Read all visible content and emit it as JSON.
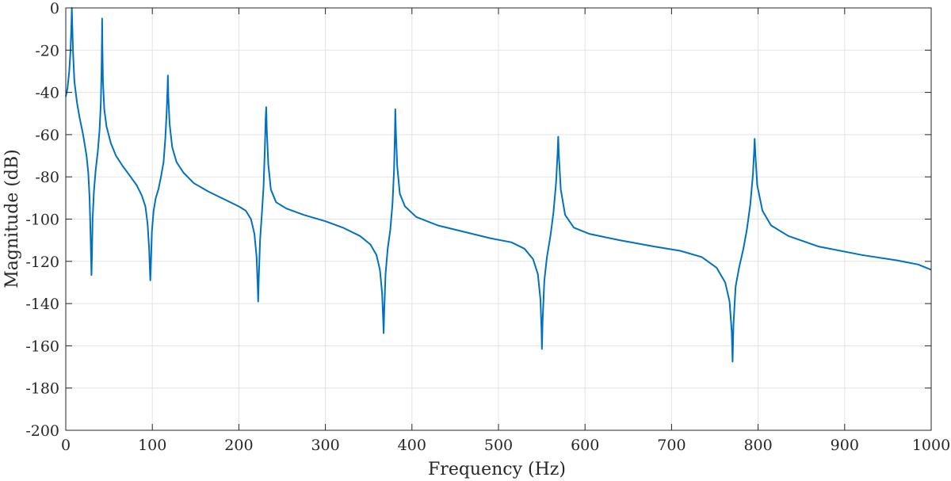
{
  "chart_data": {
    "type": "line",
    "title": "",
    "xlabel": "Frequency (Hz)",
    "ylabel": "Magnitude (dB)",
    "xlim": [
      0,
      1000
    ],
    "ylim": [
      -200,
      0
    ],
    "xticks": [
      0,
      100,
      200,
      300,
      400,
      500,
      600,
      700,
      800,
      900,
      1000
    ],
    "yticks": [
      0,
      -20,
      -40,
      -60,
      -80,
      -100,
      -120,
      -140,
      -160,
      -180,
      -200
    ],
    "xtick_labels": [
      "0",
      "100",
      "200",
      "300",
      "400",
      "500",
      "600",
      "700",
      "800",
      "900",
      "1000"
    ],
    "ytick_labels": [
      "0",
      "-20",
      "-40",
      "-60",
      "-80",
      "-100",
      "-120",
      "-140",
      "-160",
      "-180",
      "-200"
    ],
    "grid": true,
    "series": [
      {
        "name": "Magnitude",
        "color": "#0072BD",
        "points": [
          [
            0,
            -42
          ],
          [
            2,
            -38
          ],
          [
            4,
            -30
          ],
          [
            5.5,
            -20
          ],
          [
            6.5,
            -8
          ],
          [
            7,
            0
          ],
          [
            7.5,
            -8
          ],
          [
            8.5,
            -22
          ],
          [
            10,
            -35
          ],
          [
            13,
            -45
          ],
          [
            16,
            -52
          ],
          [
            20,
            -60
          ],
          [
            24,
            -70
          ],
          [
            26,
            -78
          ],
          [
            27.5,
            -90
          ],
          [
            28.5,
            -105
          ],
          [
            29.2,
            -118
          ],
          [
            29.7,
            -126.5
          ],
          [
            30.2,
            -118
          ],
          [
            31,
            -100
          ],
          [
            32.5,
            -87
          ],
          [
            34.5,
            -77
          ],
          [
            37,
            -68
          ],
          [
            39,
            -58
          ],
          [
            40.5,
            -45
          ],
          [
            41.3,
            -30
          ],
          [
            41.8,
            -15
          ],
          [
            42,
            -5
          ],
          [
            42.3,
            -18
          ],
          [
            43,
            -35
          ],
          [
            44.5,
            -48
          ],
          [
            47,
            -56
          ],
          [
            52,
            -64
          ],
          [
            58,
            -70
          ],
          [
            66,
            -75
          ],
          [
            75,
            -80
          ],
          [
            82,
            -84
          ],
          [
            88,
            -89
          ],
          [
            92,
            -94
          ],
          [
            94.5,
            -102
          ],
          [
            96.3,
            -114
          ],
          [
            97.2,
            -124
          ],
          [
            97.7,
            -129
          ],
          [
            98.3,
            -122
          ],
          [
            99.5,
            -106
          ],
          [
            101.5,
            -96
          ],
          [
            104,
            -90
          ],
          [
            107,
            -86
          ],
          [
            110,
            -80
          ],
          [
            113,
            -73
          ],
          [
            115,
            -62
          ],
          [
            116.5,
            -50
          ],
          [
            117.6,
            -38
          ],
          [
            118,
            -32
          ],
          [
            118.5,
            -42
          ],
          [
            120,
            -55
          ],
          [
            123,
            -66
          ],
          [
            128,
            -73
          ],
          [
            136,
            -78
          ],
          [
            148,
            -83
          ],
          [
            165,
            -87
          ],
          [
            185,
            -91
          ],
          [
            200,
            -94
          ],
          [
            208,
            -96
          ],
          [
            214,
            -100
          ],
          [
            218,
            -107
          ],
          [
            220.5,
            -118
          ],
          [
            221.8,
            -132
          ],
          [
            222.3,
            -139
          ],
          [
            223,
            -128
          ],
          [
            224.5,
            -110
          ],
          [
            226.5,
            -98
          ],
          [
            228.5,
            -85
          ],
          [
            230,
            -67
          ],
          [
            231,
            -52
          ],
          [
            231.6,
            -47
          ],
          [
            232.3,
            -58
          ],
          [
            234,
            -74
          ],
          [
            237,
            -86
          ],
          [
            243,
            -92
          ],
          [
            255,
            -95
          ],
          [
            275,
            -98
          ],
          [
            300,
            -101
          ],
          [
            320,
            -104
          ],
          [
            340,
            -108
          ],
          [
            352,
            -112
          ],
          [
            359,
            -117
          ],
          [
            363,
            -124
          ],
          [
            365.5,
            -135
          ],
          [
            366.8,
            -148
          ],
          [
            367.3,
            -154
          ],
          [
            368,
            -143
          ],
          [
            369.5,
            -126
          ],
          [
            372,
            -114
          ],
          [
            375,
            -105
          ],
          [
            377.5,
            -93
          ],
          [
            379.3,
            -77
          ],
          [
            380.3,
            -60
          ],
          [
            380.8,
            -48
          ],
          [
            381.4,
            -58
          ],
          [
            383,
            -75
          ],
          [
            386,
            -88
          ],
          [
            392,
            -94
          ],
          [
            405,
            -99
          ],
          [
            430,
            -103
          ],
          [
            460,
            -106
          ],
          [
            490,
            -109
          ],
          [
            515,
            -111
          ],
          [
            530,
            -114
          ],
          [
            540,
            -119
          ],
          [
            545.5,
            -126
          ],
          [
            548.5,
            -138
          ],
          [
            549.7,
            -152
          ],
          [
            550.2,
            -161.5
          ],
          [
            551,
            -148
          ],
          [
            553,
            -129
          ],
          [
            556,
            -118
          ],
          [
            560,
            -108
          ],
          [
            563.5,
            -97
          ],
          [
            566.5,
            -83
          ],
          [
            568.3,
            -69
          ],
          [
            569,
            -61
          ],
          [
            569.8,
            -70
          ],
          [
            572,
            -86
          ],
          [
            577,
            -98
          ],
          [
            587,
            -104
          ],
          [
            605,
            -107
          ],
          [
            640,
            -110
          ],
          [
            680,
            -113
          ],
          [
            710,
            -115
          ],
          [
            735,
            -118
          ],
          [
            752,
            -123
          ],
          [
            762,
            -130
          ],
          [
            767,
            -139
          ],
          [
            769.5,
            -153
          ],
          [
            770.5,
            -167.5
          ],
          [
            771.5,
            -150
          ],
          [
            774,
            -132
          ],
          [
            778,
            -123
          ],
          [
            783,
            -114
          ],
          [
            787,
            -105
          ],
          [
            791,
            -93
          ],
          [
            794,
            -79
          ],
          [
            795.5,
            -67
          ],
          [
            796,
            -62
          ],
          [
            796.8,
            -69
          ],
          [
            799,
            -84
          ],
          [
            805,
            -96
          ],
          [
            815,
            -103
          ],
          [
            835,
            -108
          ],
          [
            870,
            -113
          ],
          [
            920,
            -117
          ],
          [
            960,
            -119.5
          ],
          [
            985,
            -121.5
          ],
          [
            1000,
            -124
          ]
        ]
      }
    ]
  }
}
